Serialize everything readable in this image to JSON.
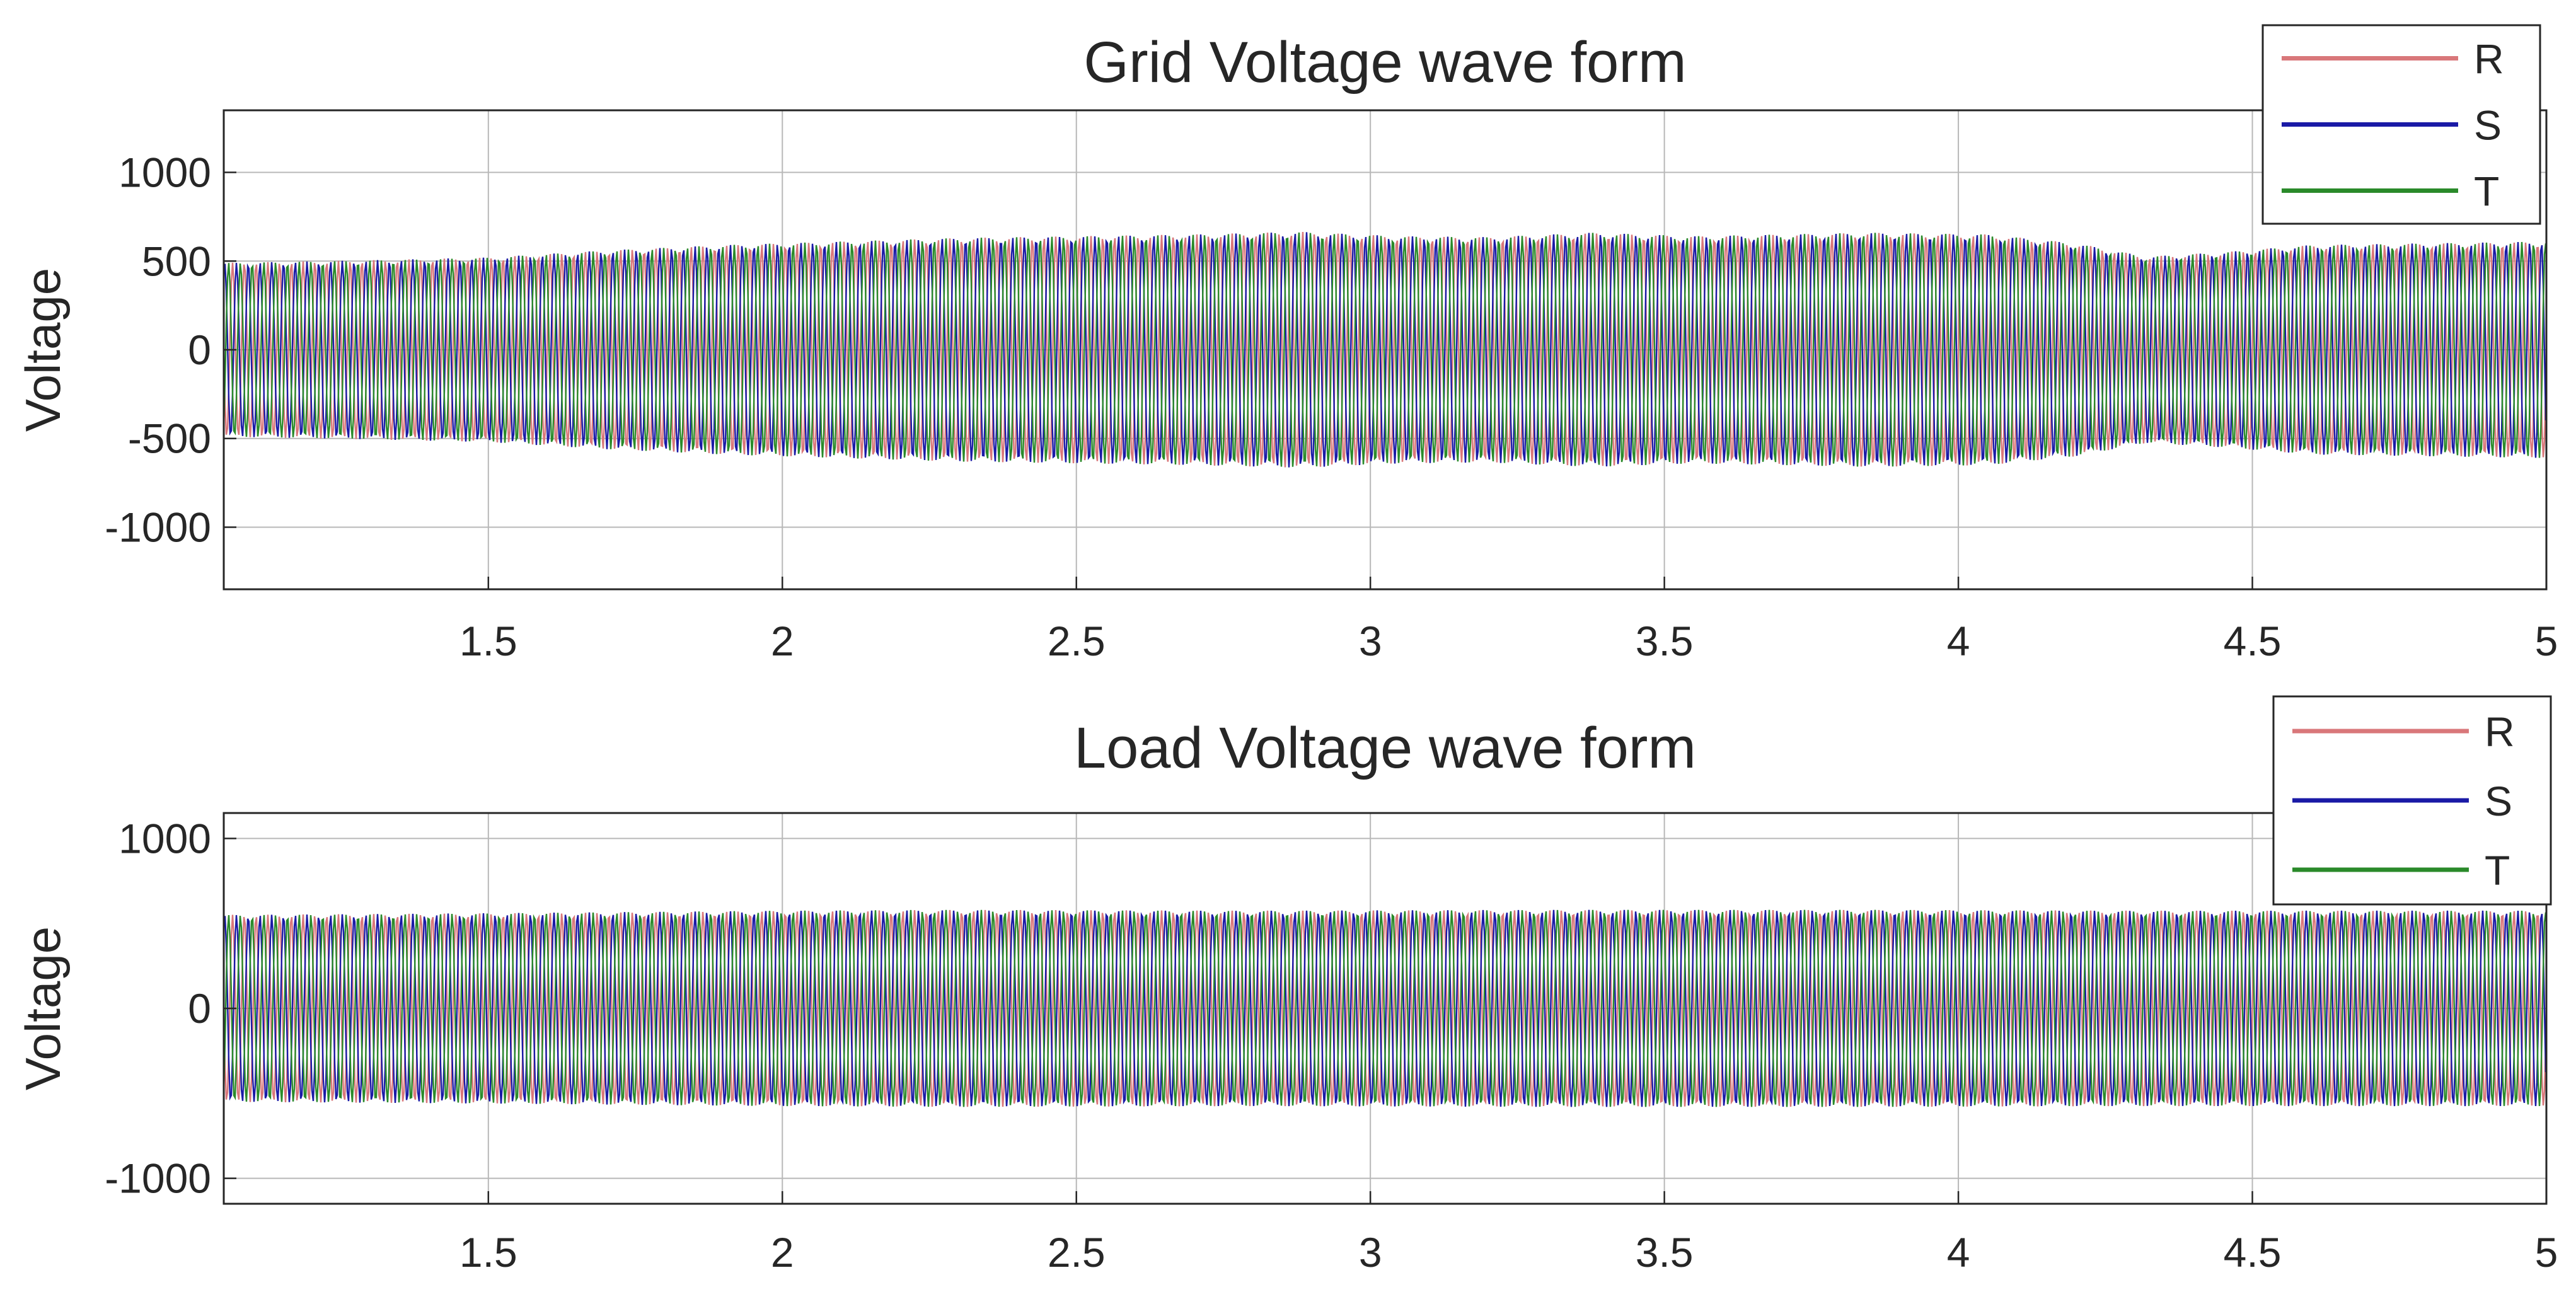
{
  "colors": {
    "R": "#d9777a",
    "S": "#1a1aa6",
    "T": "#2a8a2a",
    "axis": "#262626",
    "grid": "#b8b8b8"
  },
  "chart_data": [
    {
      "type": "line",
      "title": "Grid Voltage wave form",
      "xlabel": "",
      "ylabel": "Voltage",
      "xlim": [
        1.05,
        5
      ],
      "ylim": [
        -1350,
        1350
      ],
      "xticks": [
        1.5,
        2,
        2.5,
        3,
        3.5,
        4,
        4.5,
        5
      ],
      "xtick_labels": [
        "1.5",
        "2",
        "2.5",
        "3",
        "3.5",
        "4",
        "4.5",
        "5"
      ],
      "yticks": [
        -1000,
        -500,
        0,
        500,
        1000
      ],
      "ytick_labels": [
        "-1000",
        "-500",
        "0",
        "500",
        "1000"
      ],
      "grid": true,
      "legend_position": "top-right",
      "series": [
        {
          "name": "R",
          "display": "R"
        },
        {
          "name": "S",
          "display": "S"
        },
        {
          "name": "T",
          "display": "T"
        }
      ],
      "envelope": {
        "x": [
          1.05,
          1.3,
          1.5,
          1.7,
          1.9,
          2.1,
          2.3,
          2.5,
          2.7,
          2.88,
          3.05,
          3.2,
          3.38,
          3.55,
          3.7,
          3.85,
          4.05,
          4.2,
          4.32,
          4.45,
          4.6,
          4.8,
          5.0
        ],
        "amplitude": [
          490,
          505,
          520,
          560,
          590,
          610,
          630,
          640,
          650,
          665,
          640,
          635,
          660,
          640,
          650,
          660,
          650,
          600,
          525,
          550,
          590,
          600,
          610
        ]
      }
    },
    {
      "type": "line",
      "title": "Load Voltage wave form",
      "xlabel": "",
      "ylabel": "Voltage",
      "xlim": [
        1.05,
        5
      ],
      "ylim": [
        -1150,
        1150
      ],
      "xticks": [
        1.5,
        2,
        2.5,
        3,
        3.5,
        4,
        4.5,
        5
      ],
      "xtick_labels": [
        "1.5",
        "2",
        "2.5",
        "3",
        "3.5",
        "4",
        "4.5",
        "5"
      ],
      "yticks": [
        -1000,
        0,
        1000
      ],
      "ytick_labels": [
        "-1000",
        "0",
        "1000"
      ],
      "grid": true,
      "legend_position": "top-right",
      "series": [
        {
          "name": "R",
          "display": "R"
        },
        {
          "name": "S",
          "display": "S"
        },
        {
          "name": "T",
          "display": "T"
        }
      ],
      "envelope": {
        "x": [
          1.05,
          1.5,
          2.0,
          2.3,
          2.8,
          3.35,
          3.85,
          4.3,
          5.0
        ],
        "amplitude": [
          550,
          560,
          575,
          580,
          575,
          580,
          580,
          575,
          575
        ]
      }
    }
  ]
}
